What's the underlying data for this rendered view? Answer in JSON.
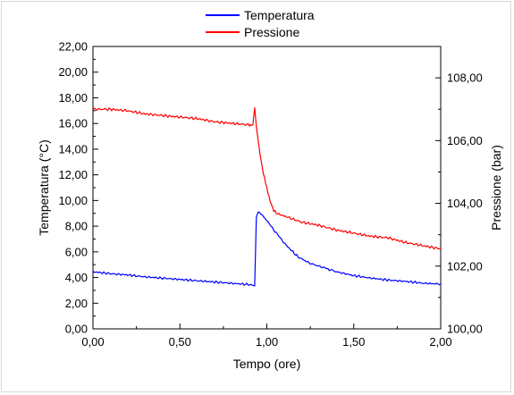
{
  "chart_data": {
    "type": "line",
    "title": "",
    "xlabel": "Tempo (ore)",
    "ylabel_left": "Temperatura (°C)",
    "ylabel_right": "Pressione (bar)",
    "xlim": [
      0,
      2
    ],
    "ylim_left": [
      0,
      22
    ],
    "ylim_right": [
      100,
      109
    ],
    "x_ticks": [
      "0,00",
      "0,50",
      "1,00",
      "1,50",
      "2,00"
    ],
    "y_left_ticks": [
      "0,00",
      "2,00",
      "4,00",
      "6,00",
      "8,00",
      "10,00",
      "12,00",
      "14,00",
      "16,00",
      "18,00",
      "20,00",
      "22,00"
    ],
    "y_right_ticks": [
      "100,00",
      "102,00",
      "104,00",
      "106,00",
      "108,00"
    ],
    "grid": false,
    "legend_position": "top-center",
    "series": [
      {
        "name": "Temperatura",
        "axis": "left",
        "color": "#0000ff",
        "points": [
          [
            0.0,
            4.45
          ],
          [
            0.1,
            4.3
          ],
          [
            0.2,
            4.2
          ],
          [
            0.3,
            4.05
          ],
          [
            0.4,
            3.95
          ],
          [
            0.5,
            3.85
          ],
          [
            0.6,
            3.75
          ],
          [
            0.7,
            3.65
          ],
          [
            0.8,
            3.55
          ],
          [
            0.9,
            3.45
          ],
          [
            0.93,
            3.35
          ],
          [
            0.94,
            8.8
          ],
          [
            0.95,
            9.1
          ],
          [
            0.97,
            8.9
          ],
          [
            1.0,
            8.45
          ],
          [
            1.03,
            7.9
          ],
          [
            1.07,
            7.2
          ],
          [
            1.12,
            6.4
          ],
          [
            1.18,
            5.6
          ],
          [
            1.25,
            5.1
          ],
          [
            1.32,
            4.8
          ],
          [
            1.4,
            4.45
          ],
          [
            1.5,
            4.15
          ],
          [
            1.6,
            3.95
          ],
          [
            1.7,
            3.8
          ],
          [
            1.8,
            3.7
          ],
          [
            1.9,
            3.55
          ],
          [
            2.0,
            3.5
          ]
        ]
      },
      {
        "name": "Pressione",
        "axis": "right",
        "color": "#ff0000",
        "points": [
          [
            0.0,
            107.0
          ],
          [
            0.1,
            107.0
          ],
          [
            0.2,
            106.95
          ],
          [
            0.3,
            106.85
          ],
          [
            0.4,
            106.8
          ],
          [
            0.5,
            106.75
          ],
          [
            0.6,
            106.7
          ],
          [
            0.7,
            106.6
          ],
          [
            0.8,
            106.55
          ],
          [
            0.9,
            106.5
          ],
          [
            0.92,
            106.5
          ],
          [
            0.93,
            107.05
          ],
          [
            0.94,
            106.45
          ],
          [
            0.96,
            105.6
          ],
          [
            0.98,
            104.95
          ],
          [
            1.0,
            104.5
          ],
          [
            1.02,
            104.05
          ],
          [
            1.04,
            103.75
          ],
          [
            1.07,
            103.65
          ],
          [
            1.1,
            103.6
          ],
          [
            1.2,
            103.4
          ],
          [
            1.3,
            103.3
          ],
          [
            1.4,
            103.15
          ],
          [
            1.5,
            103.05
          ],
          [
            1.6,
            102.95
          ],
          [
            1.7,
            102.9
          ],
          [
            1.8,
            102.75
          ],
          [
            1.9,
            102.65
          ],
          [
            2.0,
            102.55
          ]
        ]
      }
    ]
  }
}
